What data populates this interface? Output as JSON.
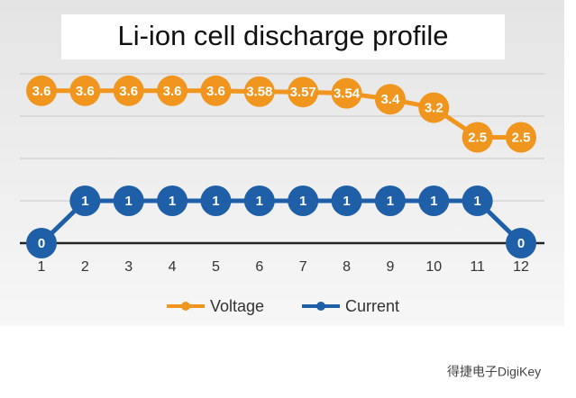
{
  "chart_data": {
    "type": "line",
    "title": "Li-ion cell discharge profile",
    "categories": [
      1,
      2,
      3,
      4,
      5,
      6,
      7,
      8,
      9,
      10,
      11,
      12
    ],
    "series": [
      {
        "name": "Voltage",
        "color": "#f0961e",
        "values": [
          3.6,
          3.6,
          3.6,
          3.6,
          3.6,
          3.58,
          3.57,
          3.54,
          3.4,
          3.2,
          2.5,
          2.5
        ]
      },
      {
        "name": "Current",
        "color": "#1f5fa8",
        "values": [
          0,
          1,
          1,
          1,
          1,
          1,
          1,
          1,
          1,
          1,
          1,
          0
        ]
      }
    ],
    "ylim": [
      0,
      4
    ],
    "yticks": [
      0,
      1,
      2,
      3,
      4
    ],
    "grid": true,
    "legend": "bottom",
    "watermark": "得捷电子DigiKey"
  }
}
